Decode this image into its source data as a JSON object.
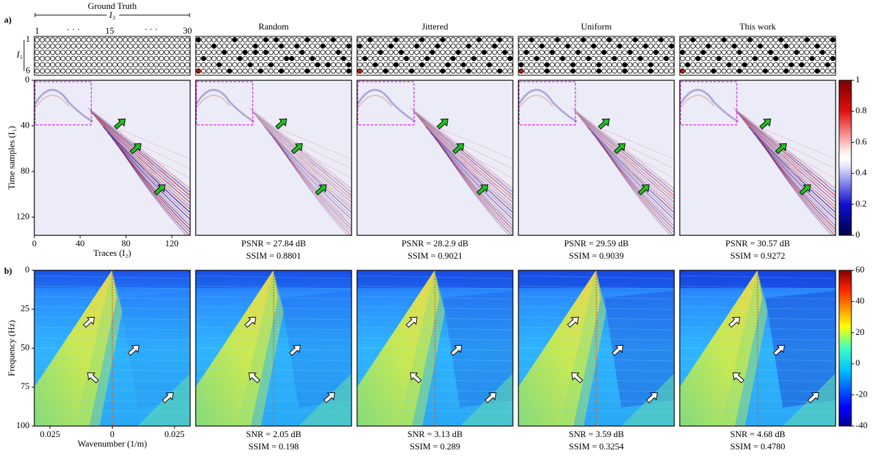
{
  "panel_a": {
    "label": "a)",
    "ylabel": "Time samples (I₁)",
    "xlabel": "Traces (I₂)",
    "xlim": [
      0,
      136
    ],
    "ylim": [
      0,
      136
    ],
    "xticks": [
      0,
      40,
      80,
      120
    ],
    "yticks": [
      0,
      40,
      80,
      120
    ],
    "colorbar": {
      "lim": [
        0,
        1
      ],
      "ticks": [
        0,
        0.2,
        0.4,
        0.6,
        0.8,
        1
      ]
    },
    "mask_axis": {
      "label": "I₃",
      "ticks": [
        1,
        15,
        30
      ],
      "ellipsis": "· · ·",
      "row_label": "I₅",
      "row_ticks": [
        1,
        6
      ]
    }
  },
  "panel_b": {
    "label": "b)",
    "ylabel": "Frequency (Hz)",
    "xlabel": "Wavenumber (1/m)",
    "xlim": [
      -0.0313,
      0.0313
    ],
    "ylim": [
      0,
      100
    ],
    "xticks": [
      {
        "value": -0.025,
        "label": "0.025"
      },
      0,
      0.025
    ],
    "yticks": [
      0,
      25,
      50,
      75,
      100
    ],
    "colorbar": {
      "lim": [
        -40,
        60
      ],
      "ticks": [
        -40,
        -20,
        0,
        20,
        40,
        60
      ]
    }
  },
  "highlight": {
    "row": 6,
    "col": 1,
    "color": "#d01010"
  },
  "methods": [
    {
      "name": "Ground Truth"
    },
    {
      "name": "Random",
      "a_metrics": [
        "PSNR = 27.84 dB",
        "SSIM = 0.8801"
      ],
      "b_metrics": [
        "SNR = 2.05 dB",
        "SSIM = 0.198"
      ],
      "mask": [
        [
          1,
          8,
          14,
          16,
          22,
          27
        ],
        [
          4,
          12,
          17,
          20,
          25,
          30
        ],
        [
          6,
          10,
          12,
          14,
          21,
          28
        ],
        [
          2,
          9,
          18,
          19,
          23,
          29
        ],
        [
          5,
          11,
          15,
          24,
          26,
          30
        ],
        [
          1,
          7,
          13,
          17,
          22,
          30
        ]
      ]
    },
    {
      "name": "Jittered",
      "a_metrics": [
        "PSNR = 28.2.9 dB",
        "SSIM = 0.9021"
      ],
      "b_metrics": [
        "SNR = 3.13 dB",
        "SSIM = 0.289"
      ],
      "mask": [
        [
          3,
          8,
          13,
          17,
          24,
          28
        ],
        [
          1,
          7,
          12,
          16,
          22,
          27
        ],
        [
          5,
          9,
          15,
          20,
          25,
          29
        ],
        [
          2,
          10,
          14,
          19,
          23,
          30
        ],
        [
          4,
          8,
          13,
          18,
          21,
          26
        ],
        [
          1,
          6,
          11,
          17,
          22,
          28
        ]
      ]
    },
    {
      "name": "Uniform",
      "a_metrics": [
        "PSNR = 29.59 dB",
        "SSIM = 0.9039"
      ],
      "b_metrics": [
        "SNR = 3.59 dB",
        "SSIM = 0.3254"
      ],
      "mask": [
        [
          3,
          8,
          13,
          18,
          23,
          28
        ],
        [
          5,
          10,
          15,
          20,
          25,
          30
        ],
        [
          2,
          7,
          12,
          17,
          22,
          27
        ],
        [
          4,
          9,
          14,
          19,
          24,
          29
        ],
        [
          1,
          6,
          11,
          16,
          21,
          26
        ],
        [
          1,
          6,
          11,
          16,
          21,
          26
        ]
      ]
    },
    {
      "name": "This work",
      "a_metrics": [
        "PSNR = 30.57 dB",
        "SSIM = 0.9272"
      ],
      "b_metrics": [
        "SNR = 4.68 dB",
        "SSIM = 0.4780"
      ],
      "mask": [
        [
          3,
          9,
          14,
          20,
          25,
          30
        ],
        [
          6,
          11,
          16,
          21,
          27
        ],
        [
          1,
          5,
          12,
          18,
          23,
          28
        ],
        [
          4,
          8,
          15,
          19,
          26,
          30
        ],
        [
          2,
          10,
          13,
          22,
          24,
          29
        ],
        [
          1,
          7,
          12,
          17,
          21,
          27
        ]
      ]
    }
  ]
}
